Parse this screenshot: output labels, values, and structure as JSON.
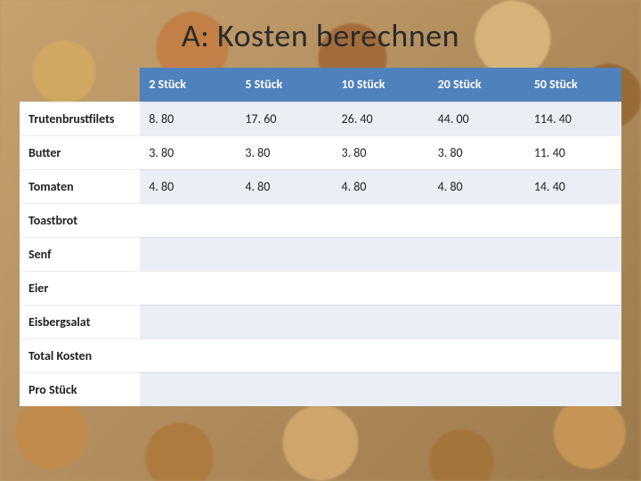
{
  "title": "A: Kosten berechnen",
  "table": {
    "type": "table",
    "header_bg": "#4f81bd",
    "alt_row_bg": "#e9eef7",
    "row_bg": "#ffffff",
    "text_color": "#222222",
    "header_text_color": "#ffffff",
    "border_color": "#d0d0d0",
    "font_size": 14,
    "header_font_weight": 700,
    "columns": [
      "",
      "2 Stück",
      "5 Stück",
      "10 Stück",
      "20 Stück",
      "50 Stück"
    ],
    "rows": [
      {
        "label": "Trutenbrustfilets",
        "cells": [
          "8. 80",
          "17. 60",
          "26. 40",
          "44. 00",
          "114. 40"
        ]
      },
      {
        "label": "Butter",
        "cells": [
          "3. 80",
          "3. 80",
          "3. 80",
          "3. 80",
          "11. 40"
        ]
      },
      {
        "label": "Tomaten",
        "cells": [
          "4. 80",
          "4. 80",
          "4. 80",
          "4. 80",
          "14. 40"
        ]
      },
      {
        "label": "Toastbrot",
        "cells": [
          "",
          "",
          "",
          "",
          ""
        ]
      },
      {
        "label": "Senf",
        "cells": [
          "",
          "",
          "",
          "",
          ""
        ]
      },
      {
        "label": "Eier",
        "cells": [
          "",
          "",
          "",
          "",
          ""
        ]
      },
      {
        "label": "Eisbergsalat",
        "cells": [
          "",
          "",
          "",
          "",
          ""
        ]
      },
      {
        "label": "Total Kosten",
        "cells": [
          "",
          "",
          "",
          "",
          ""
        ]
      },
      {
        "label": "Pro Stück",
        "cells": [
          "",
          "",
          "",
          "",
          ""
        ]
      }
    ]
  }
}
